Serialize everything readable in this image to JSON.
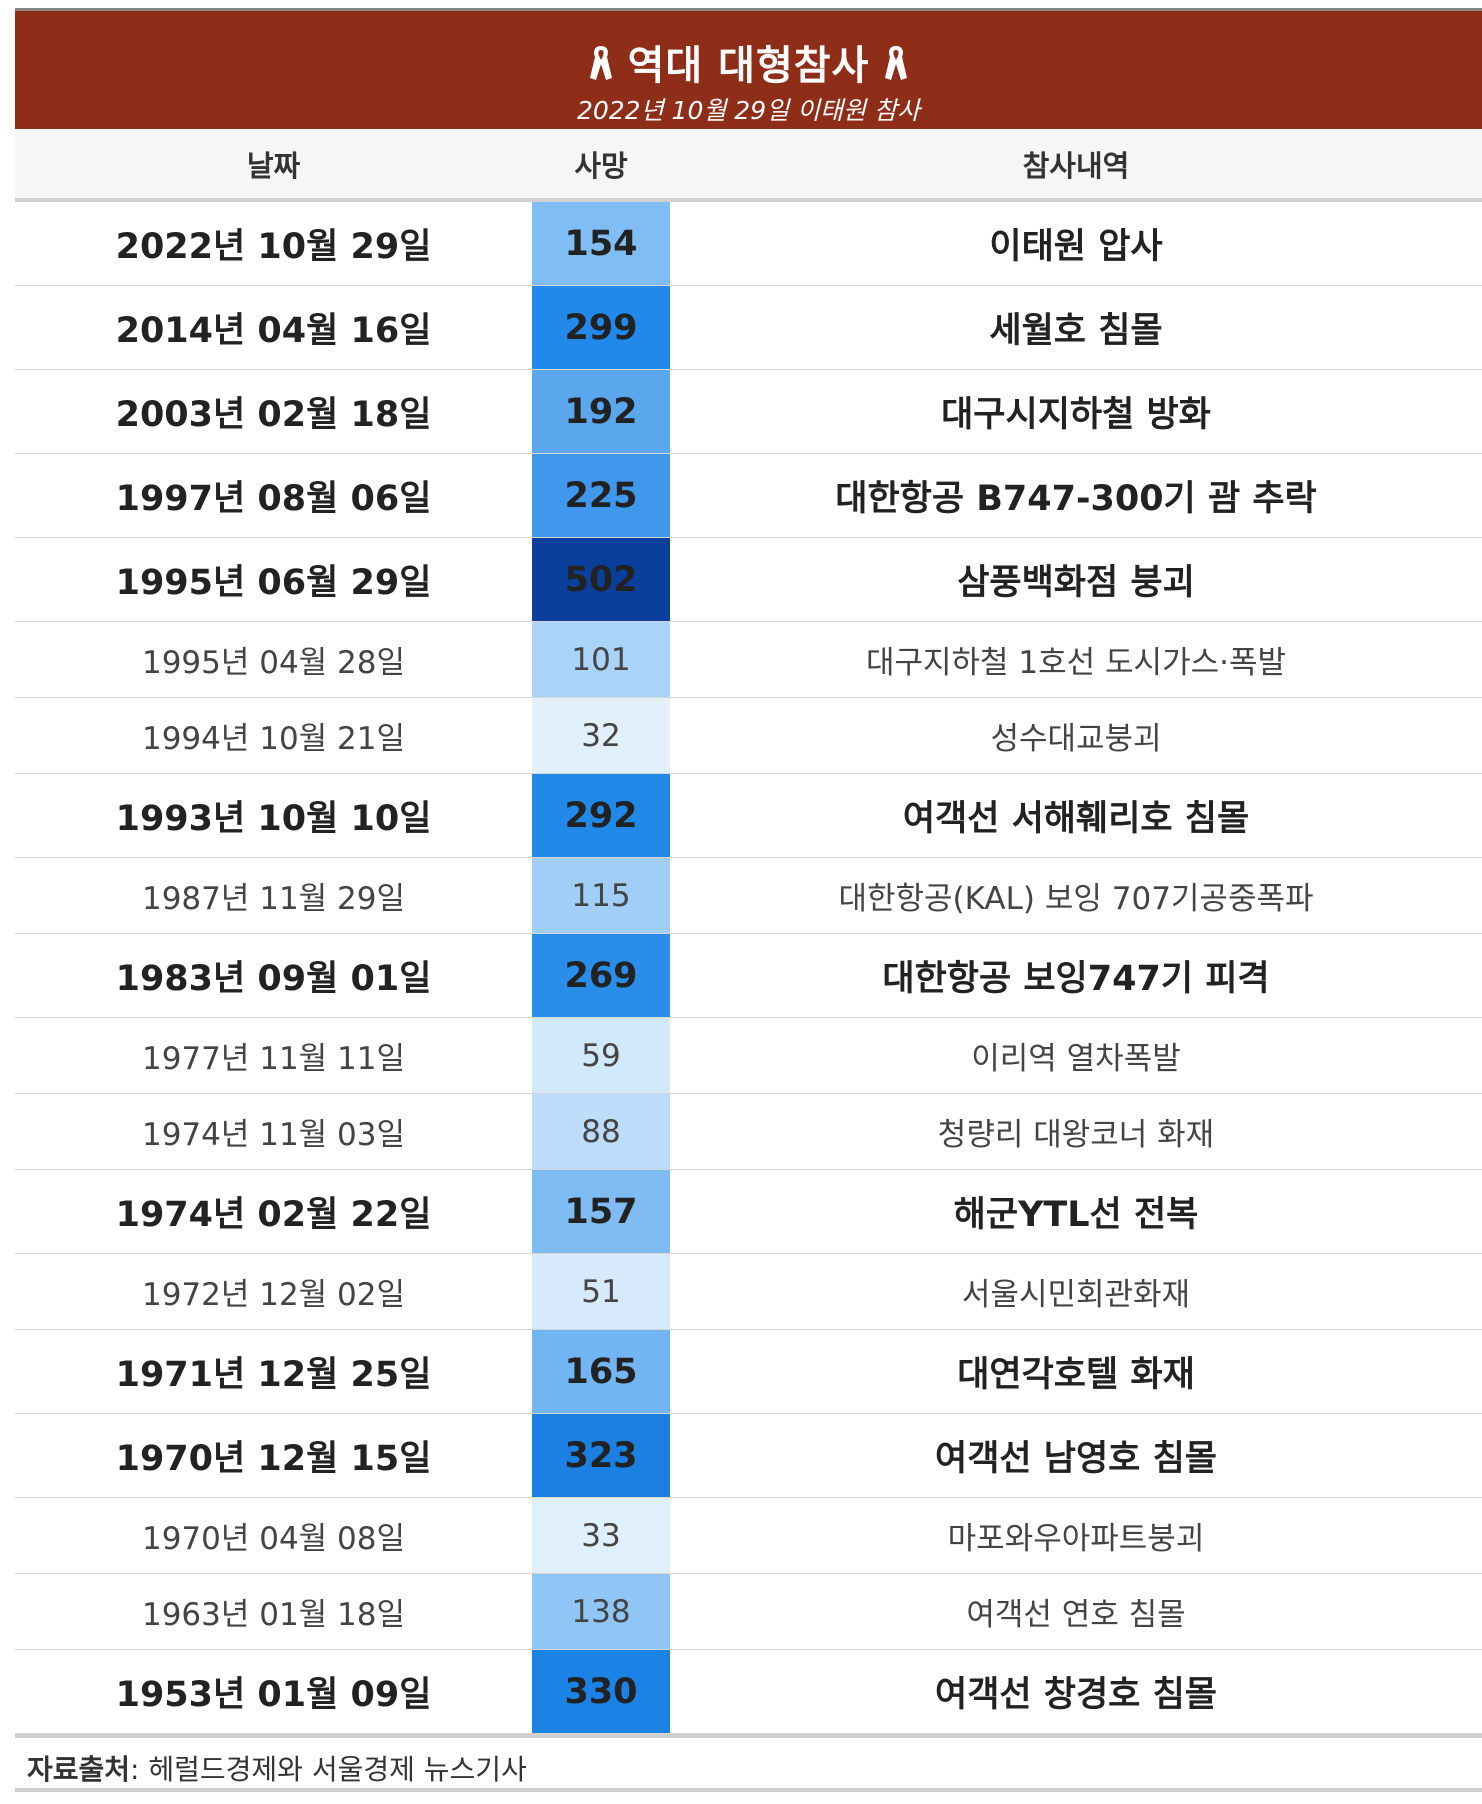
{
  "header": {
    "title": "역대 대형참사",
    "subtitle": "2022년 10월 29일 이태원 참사",
    "icon": "ribbon-icon"
  },
  "columns": {
    "date": "날짜",
    "deaths": "사망",
    "description": "참사내역"
  },
  "rows": [
    {
      "date": "2022년 10월 29일",
      "deaths": "154",
      "description": "이태원 압사",
      "major": true,
      "color": "#80bdf5"
    },
    {
      "date": "2014년 04월 16일",
      "deaths": "299",
      "description": "세월호 침몰",
      "major": true,
      "color": "#2089e9"
    },
    {
      "date": "2003년 02월 18일",
      "deaths": "192",
      "description": "대구시지하철 방화",
      "major": true,
      "color": "#5aa7ee"
    },
    {
      "date": "1997년 08월 06일",
      "deaths": "225",
      "description": "대한항공 B747-300기 괌 추락",
      "major": true,
      "color": "#3f98eb"
    },
    {
      "date": "1995년 06월 29일",
      "deaths": "502",
      "description": "삼풍백화점 붕괴",
      "major": true,
      "color": "#0b3f9c"
    },
    {
      "date": "1995년 04월 28일",
      "deaths": "101",
      "description": "대구지하철 1호선 도시가스·폭발",
      "major": false,
      "color": "#a9d3f8"
    },
    {
      "date": "1994년 10월 21일",
      "deaths": "32",
      "description": "성수대교붕괴",
      "major": false,
      "color": "#e2f0fc"
    },
    {
      "date": "1993년 10월 10일",
      "deaths": "292",
      "description": "여객선 서해훼리호 침몰",
      "major": true,
      "color": "#218ae9"
    },
    {
      "date": "1987년 11월 29일",
      "deaths": "115",
      "description": "대한항공(KAL) 보잉 707기공중폭파",
      "major": false,
      "color": "#a0cef7"
    },
    {
      "date": "1983년 09월 01일",
      "deaths": "269",
      "description": "대한항공 보잉747기 피격",
      "major": true,
      "color": "#2a8dea"
    },
    {
      "date": "1977년 11월 11일",
      "deaths": "59",
      "description": "이리역 열차폭발",
      "major": false,
      "color": "#d2e8fb"
    },
    {
      "date": "1974년 11월 03일",
      "deaths": "88",
      "description": "청량리 대왕코너 화재",
      "major": false,
      "color": "#bcdcf9"
    },
    {
      "date": "1974년 02월 22일",
      "deaths": "157",
      "description": "해군YTL선 전복",
      "major": true,
      "color": "#7fbcf4"
    },
    {
      "date": "1972년 12월 02일",
      "deaths": "51",
      "description": "서울시민회관화재",
      "major": false,
      "color": "#d6eafb"
    },
    {
      "date": "1971년 12월 25일",
      "deaths": "165",
      "description": "대연각호텔 화재",
      "major": true,
      "color": "#72b5f3"
    },
    {
      "date": "1970년 12월 15일",
      "deaths": "323",
      "description": "여객선 남영호 침몰",
      "major": true,
      "color": "#1b80e2"
    },
    {
      "date": "1970년 04월 08일",
      "deaths": "33",
      "description": "마포와우아파트붕괴",
      "major": false,
      "color": "#e0effc"
    },
    {
      "date": "1963년 01월 18일",
      "deaths": "138",
      "description": "여객선 연호 침몰",
      "major": false,
      "color": "#8fc6f6"
    },
    {
      "date": "1953년 01월 09일",
      "deaths": "330",
      "description": "여객선 창경호 침몰",
      "major": true,
      "color": "#1b82e6"
    }
  ],
  "footer": {
    "label": "자료출처",
    "text": ": 헤럴드경제와 서울경제 뉴스기사"
  }
}
